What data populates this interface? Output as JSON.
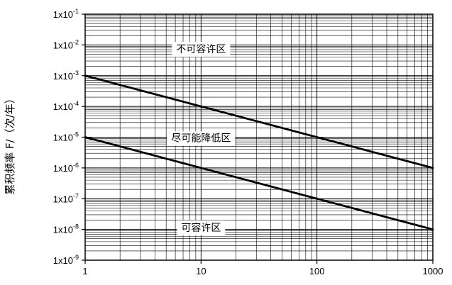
{
  "chart_data": {
    "type": "line",
    "title": "",
    "xlabel": "",
    "ylabel": "累积频率 F/（次/年）",
    "x_scale": "log",
    "y_scale": "log",
    "xlim": [
      1,
      1000
    ],
    "ylim": [
      1e-09,
      0.1
    ],
    "grid": true,
    "x_ticks": [
      {
        "value": 1,
        "label": "1"
      },
      {
        "value": 10,
        "label": "10"
      },
      {
        "value": 100,
        "label": "100"
      },
      {
        "value": 1000,
        "label": "1000"
      }
    ],
    "y_ticks": [
      {
        "value": 0.1,
        "base": "1x10",
        "exp": "-1"
      },
      {
        "value": 0.01,
        "base": "1x10",
        "exp": "-2"
      },
      {
        "value": 0.001,
        "base": "1x10",
        "exp": "-3"
      },
      {
        "value": 0.0001,
        "base": "1x10",
        "exp": "-4"
      },
      {
        "value": 1e-05,
        "base": "1x10",
        "exp": "-5"
      },
      {
        "value": 1e-06,
        "base": "1x10",
        "exp": "-6"
      },
      {
        "value": 1e-07,
        "base": "1x10",
        "exp": "-7"
      },
      {
        "value": 1e-08,
        "base": "1x10",
        "exp": "-8"
      },
      {
        "value": 1e-09,
        "base": "1x10",
        "exp": "-9"
      }
    ],
    "series": [
      {
        "x": [
          1,
          1000
        ],
        "y": [
          0.001,
          1e-06
        ]
      },
      {
        "x": [
          1,
          1000
        ],
        "y": [
          1e-05,
          1e-08
        ]
      }
    ],
    "annotations": [
      {
        "text": "不可容许区",
        "x": 10,
        "y": 0.007
      },
      {
        "text": "尽可能降低区",
        "x": 10,
        "y": 9e-06
      },
      {
        "text": "可容许区",
        "x": 10,
        "y": 1.1e-08
      }
    ]
  }
}
